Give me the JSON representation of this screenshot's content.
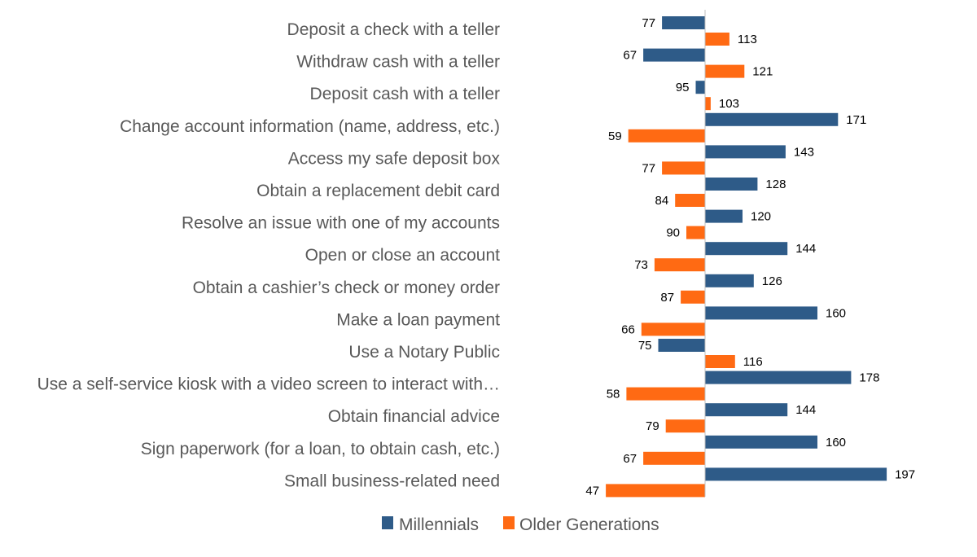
{
  "chart_data": {
    "type": "bar",
    "orientation": "horizontal",
    "categories": [
      "Deposit a check with a teller",
      "Withdraw cash with a teller",
      "Deposit cash with a teller",
      "Change account information (name, address, etc.)",
      "Access my safe deposit box",
      "Obtain a replacement debit card",
      "Resolve an issue with one of my accounts",
      "Open or close an account",
      "Obtain a cashier’s check or money order",
      "Make a loan payment",
      "Use a Notary Public",
      "Use a self-service kiosk with a video screen to interact with…",
      "Obtain financial advice",
      "Sign paperwork (for a loan, to obtain cash, etc.)",
      "Small business-related need"
    ],
    "baseline": 100,
    "series": [
      {
        "name": "Millennials",
        "color": "#2E5B88",
        "values": [
          77,
          67,
          95,
          171,
          143,
          128,
          120,
          144,
          126,
          160,
          75,
          178,
          144,
          160,
          197
        ]
      },
      {
        "name": "Older Generations",
        "color": "#FF6A13",
        "values": [
          113,
          121,
          103,
          59,
          77,
          84,
          90,
          73,
          87,
          66,
          116,
          58,
          79,
          67,
          47
        ]
      }
    ],
    "title": "",
    "xlabel": "",
    "ylabel": "",
    "grid": false,
    "legend": "bottom"
  }
}
